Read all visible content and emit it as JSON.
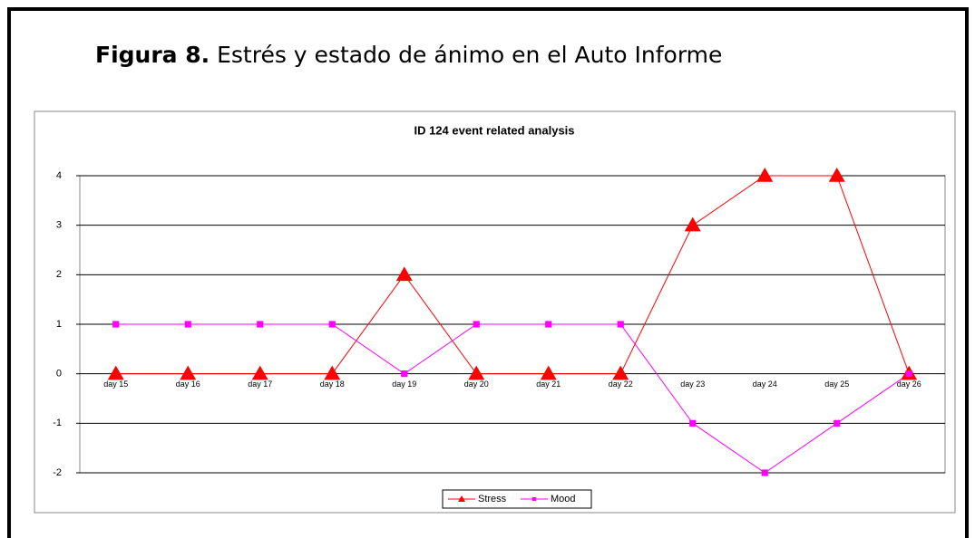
{
  "caption": {
    "label": "Figura 8.",
    "text": "Estrés y estado de ánimo en el Auto Informe"
  },
  "chart_data": {
    "type": "line",
    "title": "ID 124  event related analysis",
    "categories": [
      "day 15",
      "day 16",
      "day 17",
      "day 18",
      "day 19",
      "day 20",
      "day 21",
      "day 22",
      "day 23",
      "day 24",
      "day 25",
      "day 26"
    ],
    "series": [
      {
        "name": "Stress",
        "color": "#ff0000",
        "marker": "triangle",
        "values": [
          0,
          0,
          0,
          0,
          2,
          0,
          0,
          0,
          3,
          4,
          4,
          0
        ]
      },
      {
        "name": "Mood",
        "color": "#ff00ff",
        "marker": "square",
        "values": [
          1,
          1,
          1,
          1,
          0,
          1,
          1,
          1,
          -1,
          -2,
          -1,
          0
        ]
      }
    ],
    "ylim": [
      -2,
      4
    ],
    "yticks": [
      -2,
      -1,
      0,
      1,
      2,
      3,
      4
    ],
    "grid": true,
    "legend": "bottom"
  }
}
